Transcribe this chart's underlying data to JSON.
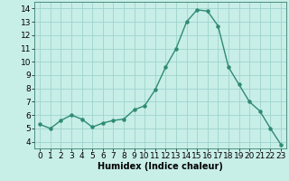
{
  "x": [
    0,
    1,
    2,
    3,
    4,
    5,
    6,
    7,
    8,
    9,
    10,
    11,
    12,
    13,
    14,
    15,
    16,
    17,
    18,
    19,
    20,
    21,
    22,
    23
  ],
  "y": [
    5.3,
    5.0,
    5.6,
    6.0,
    5.7,
    5.1,
    5.4,
    5.6,
    5.7,
    6.4,
    6.7,
    7.9,
    9.6,
    11.0,
    13.0,
    13.9,
    13.8,
    12.7,
    9.6,
    8.3,
    7.0,
    6.3,
    5.0,
    3.8
  ],
  "line_color": "#2e8b72",
  "marker": "o",
  "markersize": 2.2,
  "linewidth": 1.0,
  "xlabel": "Humidex (Indice chaleur)",
  "xlim": [
    -0.5,
    23.5
  ],
  "ylim": [
    3.5,
    14.5
  ],
  "yticks": [
    4,
    5,
    6,
    7,
    8,
    9,
    10,
    11,
    12,
    13,
    14
  ],
  "xticks": [
    0,
    1,
    2,
    3,
    4,
    5,
    6,
    7,
    8,
    9,
    10,
    11,
    12,
    13,
    14,
    15,
    16,
    17,
    18,
    19,
    20,
    21,
    22,
    23
  ],
  "background_color": "#c8eee8",
  "grid_color": "#9ed4cc",
  "xlabel_fontsize": 7,
  "tick_fontsize": 6.5
}
